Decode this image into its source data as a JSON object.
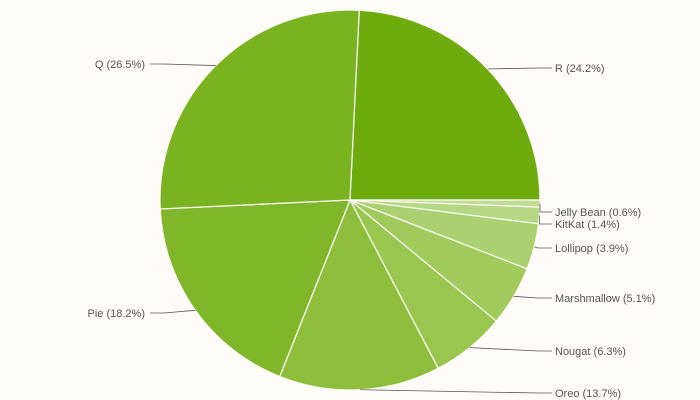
{
  "chart_data": {
    "type": "pie",
    "title": "",
    "legend": "labels",
    "slices": [
      {
        "label": "R (24.2%)",
        "name": "R",
        "value": 24.2,
        "color": "#6eab0d"
      },
      {
        "label": "Jelly Bean (0.6%)",
        "name": "Jelly Bean",
        "value": 0.6,
        "color": "#c0dd93"
      },
      {
        "label": "KitKat (1.4%)",
        "name": "KitKat",
        "value": 1.4,
        "color": "#b6d784"
      },
      {
        "label": "Lollipop (3.9%)",
        "name": "Lollipop",
        "value": 3.9,
        "color": "#abd06f"
      },
      {
        "label": "Marshmallow (5.1%)",
        "name": "Marshmallow",
        "value": 5.1,
        "color": "#a0ca5b"
      },
      {
        "label": "Nougat (6.3%)",
        "name": "Nougat",
        "value": 6.3,
        "color": "#98c64e"
      },
      {
        "label": "Oreo (13.7%)",
        "name": "Oreo",
        "value": 13.7,
        "color": "#8dbf3c"
      },
      {
        "label": "Pie (18.2%)",
        "name": "Pie",
        "value": 18.2,
        "color": "#80b72a"
      },
      {
        "label": "Q (26.5%)",
        "name": "Q",
        "value": 26.5,
        "color": "#79b320"
      }
    ]
  }
}
